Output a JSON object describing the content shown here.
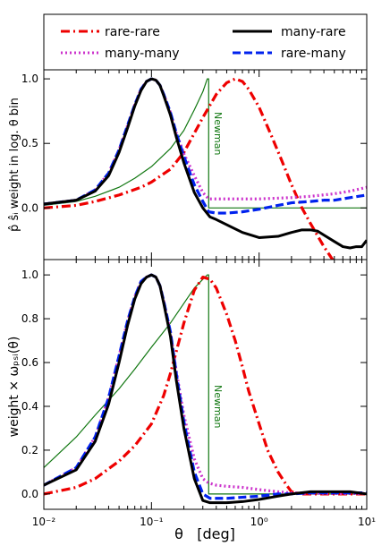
{
  "legend": {
    "items": [
      {
        "label": "rare-rare",
        "color": "#ee0000",
        "style": "dashdot"
      },
      {
        "label": "many-rare",
        "color": "#000000",
        "style": "solid"
      },
      {
        "label": "many-many",
        "color": "#cc33cc",
        "style": "dotted"
      },
      {
        "label": "rare-many",
        "color": "#0022ee",
        "style": "dashed"
      }
    ]
  },
  "chart_data": [
    {
      "type": "line",
      "panel": "top",
      "ylabel": "p̂ ŝᵢ weight in log. θ bin",
      "xscale": "log",
      "xlim": [
        0.01,
        10
      ],
      "ylim": [
        -0.4,
        1.07
      ],
      "yticks": [
        "0.0",
        "0.5",
        "1.0"
      ],
      "ytick_values": [
        0.0,
        0.5,
        1.0
      ],
      "annotation": "Newman",
      "series": [
        {
          "key": "rare-rare",
          "color": "#ee0000",
          "style": "dashdot",
          "x": [
            0.01,
            0.02,
            0.03,
            0.05,
            0.08,
            0.1,
            0.15,
            0.2,
            0.3,
            0.4,
            0.5,
            0.6,
            0.7,
            0.8,
            1.0,
            1.3,
            1.6,
            2.0,
            2.5,
            3.0,
            4.0,
            5.0
          ],
          "y": [
            0.0,
            0.02,
            0.05,
            0.1,
            0.16,
            0.2,
            0.3,
            0.43,
            0.7,
            0.88,
            0.97,
            1.0,
            0.98,
            0.92,
            0.78,
            0.56,
            0.38,
            0.18,
            0.0,
            -0.12,
            -0.3,
            -0.42
          ]
        },
        {
          "key": "many-rare",
          "color": "#000000",
          "style": "solid",
          "x": [
            0.01,
            0.02,
            0.03,
            0.04,
            0.05,
            0.06,
            0.07,
            0.08,
            0.09,
            0.1,
            0.11,
            0.12,
            0.13,
            0.15,
            0.17,
            0.2,
            0.25,
            0.3,
            0.35,
            0.4,
            0.5,
            0.7,
            1.0,
            1.5,
            2.0,
            2.5,
            3.0,
            3.5,
            4.0,
            5.0,
            6.0,
            7.0,
            8.0,
            9.0,
            10.0
          ],
          "y": [
            0.03,
            0.06,
            0.13,
            0.25,
            0.43,
            0.62,
            0.79,
            0.91,
            0.98,
            1.0,
            0.99,
            0.95,
            0.87,
            0.72,
            0.55,
            0.35,
            0.12,
            0.0,
            -0.07,
            -0.09,
            -0.13,
            -0.19,
            -0.23,
            -0.22,
            -0.19,
            -0.17,
            -0.17,
            -0.18,
            -0.21,
            -0.26,
            -0.3,
            -0.31,
            -0.3,
            -0.3,
            -0.25
          ]
        },
        {
          "key": "rare-many",
          "color": "#0022ee",
          "style": "dashed",
          "x": [
            0.01,
            0.02,
            0.03,
            0.04,
            0.05,
            0.06,
            0.07,
            0.08,
            0.09,
            0.1,
            0.11,
            0.12,
            0.13,
            0.15,
            0.17,
            0.2,
            0.25,
            0.3,
            0.34,
            0.4,
            0.5,
            0.7,
            1.0,
            1.5,
            2.0,
            3.0,
            4.0,
            5.0,
            7.0,
            10.0
          ],
          "y": [
            0.03,
            0.06,
            0.14,
            0.27,
            0.45,
            0.64,
            0.8,
            0.92,
            0.98,
            1.0,
            0.99,
            0.95,
            0.88,
            0.74,
            0.58,
            0.4,
            0.18,
            0.05,
            -0.03,
            -0.04,
            -0.04,
            -0.03,
            -0.01,
            0.02,
            0.04,
            0.05,
            0.06,
            0.06,
            0.08,
            0.1
          ]
        },
        {
          "key": "many-many",
          "color": "#cc33cc",
          "style": "dotted",
          "x": [
            0.01,
            0.02,
            0.03,
            0.04,
            0.05,
            0.06,
            0.07,
            0.08,
            0.09,
            0.1,
            0.11,
            0.12,
            0.13,
            0.15,
            0.17,
            0.2,
            0.25,
            0.3,
            0.34,
            0.4,
            0.6,
            1.0,
            2.0,
            3.0,
            5.0,
            7.0,
            10.0
          ],
          "y": [
            0.03,
            0.06,
            0.14,
            0.27,
            0.45,
            0.64,
            0.8,
            0.92,
            0.98,
            1.0,
            0.99,
            0.95,
            0.88,
            0.74,
            0.58,
            0.42,
            0.25,
            0.12,
            0.07,
            0.07,
            0.07,
            0.07,
            0.08,
            0.09,
            0.11,
            0.13,
            0.16
          ]
        },
        {
          "key": "Newman",
          "color": "#117711",
          "style": "solid",
          "x": [
            0.01,
            0.02,
            0.03,
            0.05,
            0.07,
            0.1,
            0.15,
            0.2,
            0.25,
            0.3,
            0.33,
            0.34,
            0.34,
            0.4,
            1.0,
            3.0,
            10.0
          ],
          "y": [
            0.02,
            0.05,
            0.09,
            0.16,
            0.23,
            0.32,
            0.46,
            0.6,
            0.76,
            0.9,
            1.0,
            1.0,
            0.0,
            0.0,
            0.0,
            0.0,
            0.0
          ]
        }
      ]
    },
    {
      "type": "line",
      "panel": "bottom",
      "ylabel": "weight × ωₚₛᵢ(θ)",
      "xlabel": "θ   [deg]",
      "xscale": "log",
      "xlim": [
        0.01,
        10
      ],
      "ylim": [
        -0.07,
        1.07
      ],
      "yticks": [
        "0.0",
        "0.2",
        "0.4",
        "0.6",
        "0.8",
        "1.0"
      ],
      "ytick_values": [
        0.0,
        0.2,
        0.4,
        0.6,
        0.8,
        1.0
      ],
      "xticks": [
        "10⁻²",
        "10⁻¹",
        "10⁰",
        "10¹"
      ],
      "xtick_values": [
        0.01,
        0.1,
        1,
        10
      ],
      "annotation": "Newman",
      "series": [
        {
          "key": "rare-rare",
          "color": "#ee0000",
          "style": "dashdot",
          "x": [
            0.01,
            0.02,
            0.03,
            0.05,
            0.07,
            0.1,
            0.13,
            0.15,
            0.2,
            0.25,
            0.3,
            0.35,
            0.4,
            0.5,
            0.6,
            0.7,
            0.8,
            1.0,
            1.2,
            1.5,
            1.8,
            2.0,
            2.5,
            3.0,
            5.0,
            10.0
          ],
          "y": [
            0.0,
            0.03,
            0.07,
            0.15,
            0.22,
            0.32,
            0.45,
            0.55,
            0.78,
            0.93,
            0.99,
            0.98,
            0.94,
            0.82,
            0.7,
            0.58,
            0.47,
            0.32,
            0.2,
            0.1,
            0.04,
            0.01,
            0.0,
            0.0,
            0.0,
            0.0
          ]
        },
        {
          "key": "many-rare",
          "color": "#000000",
          "style": "solid",
          "x": [
            0.01,
            0.02,
            0.03,
            0.04,
            0.05,
            0.06,
            0.07,
            0.08,
            0.09,
            0.1,
            0.11,
            0.12,
            0.13,
            0.15,
            0.17,
            0.2,
            0.25,
            0.3,
            0.35,
            0.4,
            0.5,
            0.7,
            1.0,
            1.5,
            2.0,
            3.0,
            4.0,
            5.0,
            7.0,
            10.0
          ],
          "y": [
            0.04,
            0.11,
            0.24,
            0.41,
            0.6,
            0.77,
            0.89,
            0.96,
            0.99,
            1.0,
            0.99,
            0.95,
            0.87,
            0.72,
            0.52,
            0.3,
            0.07,
            -0.03,
            -0.04,
            -0.04,
            -0.04,
            -0.035,
            -0.025,
            -0.01,
            0.0,
            0.01,
            0.01,
            0.01,
            0.01,
            0.0
          ]
        },
        {
          "key": "rare-many",
          "color": "#0022ee",
          "style": "dashed",
          "x": [
            0.01,
            0.02,
            0.03,
            0.04,
            0.05,
            0.06,
            0.07,
            0.08,
            0.09,
            0.1,
            0.11,
            0.12,
            0.13,
            0.15,
            0.17,
            0.2,
            0.25,
            0.3,
            0.35,
            0.4,
            0.5,
            0.7,
            1.0,
            1.5,
            2.0,
            3.0,
            5.0,
            10.0
          ],
          "y": [
            0.04,
            0.12,
            0.26,
            0.44,
            0.63,
            0.79,
            0.9,
            0.97,
            0.99,
            1.0,
            0.99,
            0.95,
            0.88,
            0.74,
            0.55,
            0.33,
            0.1,
            0.0,
            -0.02,
            -0.02,
            -0.02,
            -0.015,
            -0.01,
            0.0,
            0.0,
            0.005,
            0.005,
            0.005
          ]
        },
        {
          "key": "many-many",
          "color": "#cc33cc",
          "style": "dotted",
          "x": [
            0.01,
            0.02,
            0.03,
            0.04,
            0.05,
            0.06,
            0.07,
            0.08,
            0.09,
            0.1,
            0.11,
            0.12,
            0.13,
            0.15,
            0.17,
            0.2,
            0.25,
            0.3,
            0.34,
            0.4,
            0.5,
            0.7,
            1.0,
            1.5,
            2.0,
            3.0,
            5.0,
            10.0
          ],
          "y": [
            0.04,
            0.12,
            0.26,
            0.44,
            0.63,
            0.79,
            0.9,
            0.97,
            0.99,
            1.0,
            0.99,
            0.95,
            0.88,
            0.74,
            0.56,
            0.36,
            0.16,
            0.07,
            0.05,
            0.04,
            0.035,
            0.03,
            0.02,
            0.01,
            0.005,
            0.003,
            0.002,
            0.002
          ]
        },
        {
          "key": "Newman",
          "color": "#117711",
          "style": "solid",
          "x": [
            0.01,
            0.02,
            0.03,
            0.05,
            0.07,
            0.1,
            0.15,
            0.2,
            0.25,
            0.3,
            0.33,
            0.34,
            0.34,
            0.4,
            1.0,
            3.0,
            10.0
          ],
          "y": [
            0.12,
            0.26,
            0.36,
            0.48,
            0.57,
            0.67,
            0.78,
            0.87,
            0.94,
            0.98,
            1.0,
            1.0,
            0.0,
            0.0,
            0.0,
            0.0,
            0.0
          ]
        }
      ]
    }
  ]
}
